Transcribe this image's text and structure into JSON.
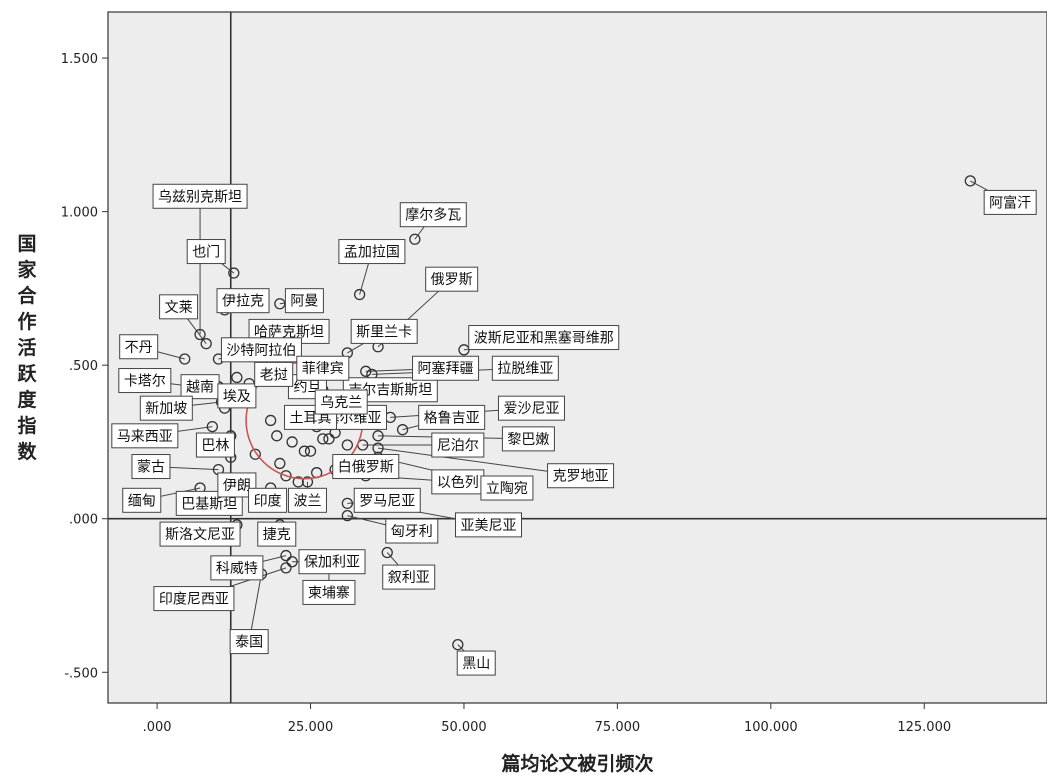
{
  "chart_data": {
    "type": "scatter",
    "title": "",
    "xlabel": "篇均论文被引频次",
    "ylabel": "国家合作活跃度指数",
    "xlim": [
      -8,
      145
    ],
    "ylim": [
      -0.6,
      1.65
    ],
    "x_ticks": [
      ".000",
      "25.000",
      "50.000",
      "75.000",
      "100.000",
      "125.000"
    ],
    "x_tick_values": [
      0,
      25,
      50,
      75,
      100,
      125
    ],
    "y_ticks": [
      "-.500",
      ".000",
      ".500",
      "1.000",
      "1.500"
    ],
    "y_tick_values": [
      -0.5,
      0,
      0.5,
      1.0,
      1.5
    ],
    "reference_lines": {
      "x": 12,
      "y": 0
    },
    "highlight_circle": {
      "cx": 24,
      "cy": 0.32,
      "r_x_units": 9.5
    },
    "grid": false,
    "colors": {
      "plot_background": "#ededed",
      "marker_stroke": "#333333",
      "reference_line": "#333333",
      "highlight_circle": "#cc5555",
      "label_box_fill": "#ffffff",
      "label_box_stroke": "#444444"
    },
    "points": [
      {
        "name": "阿富汗",
        "x": 132.5,
        "y": 1.1,
        "lx": 139,
        "ly": 1.03
      },
      {
        "name": "黑山",
        "x": 49,
        "y": -0.41,
        "lx": 52,
        "ly": -0.47
      },
      {
        "name": "乌兹别克斯坦",
        "x": 7,
        "y": 0.6,
        "lx": 7,
        "ly": 1.05
      },
      {
        "name": "也门",
        "x": 12.5,
        "y": 0.8,
        "lx": 8,
        "ly": 0.87
      },
      {
        "name": "伊拉克",
        "x": 11,
        "y": 0.68,
        "lx": 14,
        "ly": 0.71
      },
      {
        "name": "阿曼",
        "x": 20,
        "y": 0.7,
        "lx": 24,
        "ly": 0.71
      },
      {
        "name": "文莱",
        "x": 8,
        "y": 0.57,
        "lx": 3.5,
        "ly": 0.69
      },
      {
        "name": "哈萨克斯坦",
        "x": 13,
        "y": 0.55,
        "lx": 21.5,
        "ly": 0.61
      },
      {
        "name": "不丹",
        "x": 4.5,
        "y": 0.52,
        "lx": -3,
        "ly": 0.56
      },
      {
        "name": "沙特阿拉伯",
        "x": 10,
        "y": 0.52,
        "lx": 17,
        "ly": 0.55
      },
      {
        "name": "卡塔尔",
        "x": 6,
        "y": 0.43,
        "lx": -2,
        "ly": 0.45
      },
      {
        "name": "越南",
        "x": 10,
        "y": 0.43,
        "lx": 7,
        "ly": 0.43
      },
      {
        "name": "新加坡",
        "x": 10.5,
        "y": 0.38,
        "lx": 1.5,
        "ly": 0.36
      },
      {
        "name": "埃及",
        "x": 14,
        "y": 0.4,
        "lx": 13,
        "ly": 0.4
      },
      {
        "name": "马来西亚",
        "x": 9,
        "y": 0.3,
        "lx": -2,
        "ly": 0.27
      },
      {
        "name": "巴林",
        "x": 12,
        "y": 0.2,
        "lx": 9.5,
        "ly": 0.24
      },
      {
        "name": "蒙古",
        "x": 10,
        "y": 0.16,
        "lx": -1,
        "ly": 0.17
      },
      {
        "name": "缅甸",
        "x": 7,
        "y": 0.1,
        "lx": -2.5,
        "ly": 0.06
      },
      {
        "name": "巴基斯坦",
        "x": 13,
        "y": 0.08,
        "lx": 8.5,
        "ly": 0.05
      },
      {
        "name": "伊朗",
        "x": 14,
        "y": 0.11,
        "lx": 13,
        "ly": 0.11
      },
      {
        "name": "印度",
        "x": 18.5,
        "y": 0.1,
        "lx": 18,
        "ly": 0.06
      },
      {
        "name": "波兰",
        "x": 24.5,
        "y": 0.12,
        "lx": 24.5,
        "ly": 0.06
      },
      {
        "name": "斯洛文尼亚",
        "x": 13,
        "y": -0.02,
        "lx": 7,
        "ly": -0.05
      },
      {
        "name": "捷克",
        "x": 20,
        "y": -0.02,
        "lx": 19.5,
        "ly": -0.05
      },
      {
        "name": "科威特",
        "x": 21,
        "y": -0.12,
        "lx": 13,
        "ly": -0.16
      },
      {
        "name": "保加利亚",
        "x": 22,
        "y": -0.14,
        "lx": 28.5,
        "ly": -0.14
      },
      {
        "name": "印度尼西亚",
        "x": 21,
        "y": -0.16,
        "lx": 6,
        "ly": -0.26
      },
      {
        "name": "柬埔寨",
        "x": 28,
        "y": -0.13,
        "lx": 28,
        "ly": -0.24
      },
      {
        "name": "泰国",
        "x": 17,
        "y": -0.18,
        "lx": 15,
        "ly": -0.4
      },
      {
        "name": "叙利亚",
        "x": 37.5,
        "y": -0.11,
        "lx": 41,
        "ly": -0.19
      },
      {
        "name": "匈牙利",
        "x": 31,
        "y": 0.01,
        "lx": 41.5,
        "ly": -0.04
      },
      {
        "name": "罗马尼亚",
        "x": 31,
        "y": 0.05,
        "lx": 37.5,
        "ly": 0.06
      },
      {
        "name": "亚美尼亚",
        "x": 35,
        "y": 0.05,
        "lx": 54,
        "ly": -0.02
      },
      {
        "name": "白俄罗斯",
        "x": 29,
        "y": 0.16,
        "lx": 34,
        "ly": 0.17
      },
      {
        "name": "以色列",
        "x": 34,
        "y": 0.14,
        "lx": 49,
        "ly": 0.12
      },
      {
        "name": "立陶宛",
        "x": 36,
        "y": 0.2,
        "lx": 57,
        "ly": 0.1
      },
      {
        "name": "克罗地亚",
        "x": 36,
        "y": 0.23,
        "lx": 69,
        "ly": 0.14
      },
      {
        "name": "尼泊尔",
        "x": 33.5,
        "y": 0.24,
        "lx": 49,
        "ly": 0.24
      },
      {
        "name": "黎巴嫩",
        "x": 36,
        "y": 0.27,
        "lx": 60.5,
        "ly": 0.26
      },
      {
        "name": "格鲁吉亚",
        "x": 40,
        "y": 0.29,
        "lx": 48,
        "ly": 0.33
      },
      {
        "name": "爱沙尼亚",
        "x": 38,
        "y": 0.33,
        "lx": 61,
        "ly": 0.36
      },
      {
        "name": "塞尔维亚",
        "x": 29,
        "y": 0.33,
        "lx": 32,
        "ly": 0.33
      },
      {
        "name": "土耳其",
        "x": 26,
        "y": 0.3,
        "lx": 25,
        "ly": 0.33
      },
      {
        "name": "吉尔吉斯斯坦",
        "x": 31,
        "y": 0.39,
        "lx": 38,
        "ly": 0.42
      },
      {
        "name": "阿塞拜疆",
        "x": 34,
        "y": 0.48,
        "lx": 47,
        "ly": 0.49
      },
      {
        "name": "拉脱维亚",
        "x": 35,
        "y": 0.47,
        "lx": 60,
        "ly": 0.49
      },
      {
        "name": "波斯尼亚和黑塞哥维那",
        "x": 50,
        "y": 0.55,
        "lx": 63,
        "ly": 0.59
      },
      {
        "name": "斯里兰卡",
        "x": 31,
        "y": 0.54,
        "lx": 37,
        "ly": 0.61
      },
      {
        "name": "俄罗斯",
        "x": 36,
        "y": 0.56,
        "lx": 48,
        "ly": 0.78
      },
      {
        "name": "孟加拉国",
        "x": 33,
        "y": 0.73,
        "lx": 35,
        "ly": 0.87
      },
      {
        "name": "摩尔多瓦",
        "x": 42,
        "y": 0.91,
        "lx": 45,
        "ly": 0.99
      },
      {
        "name": "约旦",
        "x": 27,
        "y": 0.42,
        "lx": 24.5,
        "ly": 0.43
      },
      {
        "name": "菲律宾",
        "x": 26,
        "y": 0.47,
        "lx": 27,
        "ly": 0.49
      },
      {
        "name": "乌克兰",
        "x": 30,
        "y": 0.35,
        "lx": 30,
        "ly": 0.38
      },
      {
        "name": "老挝",
        "x": 18,
        "y": 0.47,
        "lx": 19,
        "ly": 0.47
      },
      {
        "name": "",
        "x": 17,
        "y": 0.46
      },
      {
        "name": "",
        "x": 18.5,
        "y": 0.32
      },
      {
        "name": "",
        "x": 19.5,
        "y": 0.27
      },
      {
        "name": "",
        "x": 22,
        "y": 0.25
      },
      {
        "name": "",
        "x": 24,
        "y": 0.22
      },
      {
        "name": "",
        "x": 25,
        "y": 0.22
      },
      {
        "name": "",
        "x": 27,
        "y": 0.26
      },
      {
        "name": "",
        "x": 28,
        "y": 0.26
      },
      {
        "name": "",
        "x": 26,
        "y": 0.15
      },
      {
        "name": "",
        "x": 23,
        "y": 0.12
      },
      {
        "name": "",
        "x": 21,
        "y": 0.14
      },
      {
        "name": "",
        "x": 16,
        "y": 0.21
      },
      {
        "name": "",
        "x": 20,
        "y": 0.18
      },
      {
        "name": "",
        "x": 12,
        "y": 0.27
      },
      {
        "name": "",
        "x": 11,
        "y": 0.36
      },
      {
        "name": "",
        "x": 13,
        "y": 0.46
      },
      {
        "name": "",
        "x": 15,
        "y": 0.44
      },
      {
        "name": "",
        "x": 31,
        "y": 0.24
      },
      {
        "name": "",
        "x": 29,
        "y": 0.28
      }
    ]
  }
}
